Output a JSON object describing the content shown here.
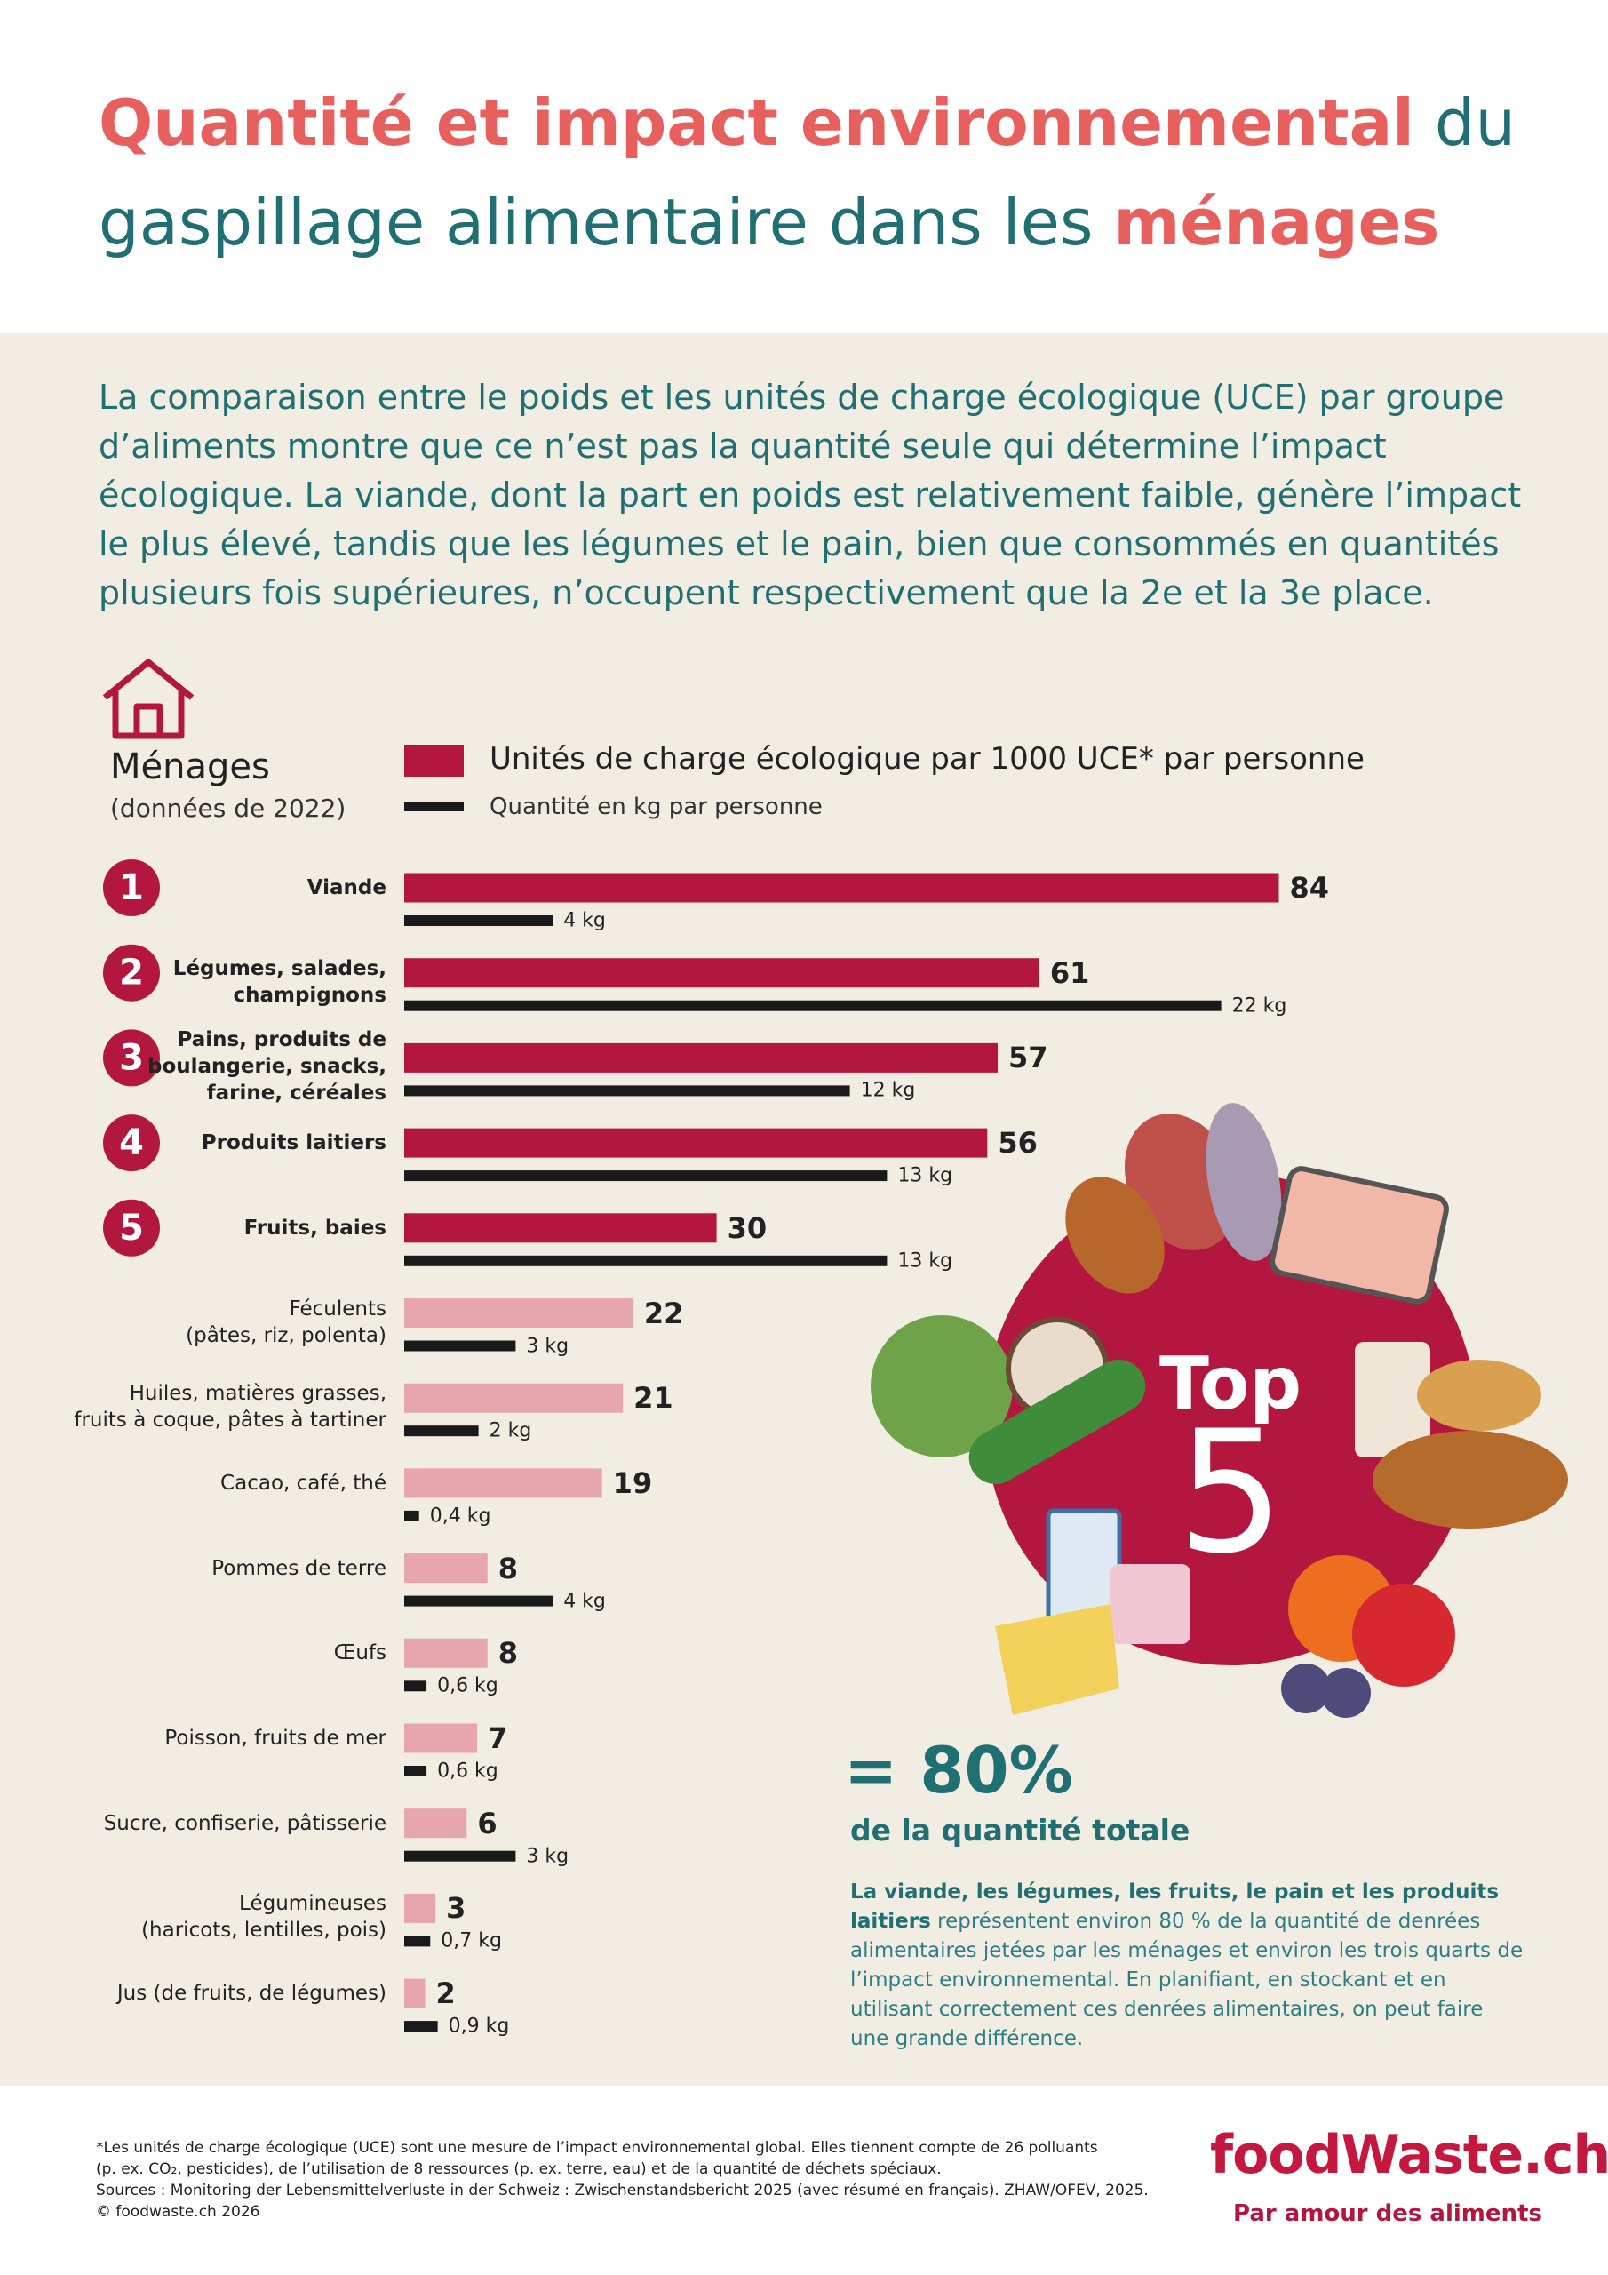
{
  "header": {
    "title_parts": [
      "Quantité et impact environnemental",
      "du",
      "gaspillage alimentaire dans les",
      "ménages"
    ]
  },
  "intro": "La comparaison entre le poids et les unités de charge écologique (UCE) par groupe d’aliments montre que ce n’est pas la quantité seule qui détermine l’impact écologique. La viande, dont la part en poids est relativement faible, génère l’impact le plus élevé, tandis que les légumes et le pain, bien que consommés en quantités plusieurs fois supérieures, n’occupent respectivement que la 2e et la 3e place.",
  "chart_data": {
    "type": "bar",
    "orientation": "horizontal",
    "title": "Ménages",
    "subtitle": "(données de 2022)",
    "categories": [
      "Viande",
      "Légumes, salades,\nchampignons",
      "Pains, produits de\nboulangerie, snacks,\nfarine, céréales",
      "Produits laitiers",
      "Fruits, baies",
      "Féculents\n(pâtes, riz, polenta)",
      "Huiles, matières grasses,\nfruits à coque, pâtes à tartiner",
      "Cacao, café, thé",
      "Pommes de terre",
      "Œufs",
      "Poisson, fruits de mer",
      "Sucre, confiserie, pâtisserie",
      "Légumineuses\n(haricots, lentilles, pois)",
      "Jus (de fruits, de légumes)"
    ],
    "ranks": [
      "1",
      "2",
      "3",
      "4",
      "5"
    ],
    "series": [
      {
        "name": "Unités de charge écologique par 1000 UCE* par personne",
        "color": "#b3173f",
        "colors": [
          "#b3173f",
          "#b3173f",
          "#b3173f",
          "#b3173f",
          "#b3173f",
          "#e6a6ac",
          "#e6a6ac",
          "#e6a6ac",
          "#e6a6ac",
          "#e6a6ac",
          "#e6a6ac",
          "#e6a6ac",
          "#e6a6ac",
          "#e6a6ac"
        ],
        "values": [
          84,
          61,
          57,
          56,
          30,
          22,
          21,
          19,
          8,
          8,
          7,
          6,
          3,
          2
        ]
      },
      {
        "name": "Quantité en kg par personne",
        "color": "#1a1a1a",
        "values": [
          4,
          22,
          12,
          13,
          13,
          3,
          2,
          0.4,
          4,
          0.6,
          0.6,
          3,
          0.7,
          0.9
        ],
        "value_labels": [
          "4 kg",
          "22 kg",
          "12 kg",
          "13 kg",
          "13 kg",
          "3 kg",
          "2 kg",
          "0,4 kg",
          "4 kg",
          "0,6 kg",
          "0,6 kg",
          "3 kg",
          "0,7 kg",
          "0,9 kg"
        ]
      }
    ]
  },
  "badge": {
    "line1": "Top",
    "line2": "5"
  },
  "summary": {
    "headline": "= 80%",
    "subheadline": "de la quantité totale",
    "bold": "La viande, les légumes, les fruits, le pain et les produits laitiers",
    "text": "représentent environ 80 % de la quantité de denrées alimentaires jetées par les ménages et environ les trois quarts de l’impact environnemental. En planifiant, en stockant et en utilisant correctement ces denrées alimentaires, on peut faire une grande différence."
  },
  "footer": {
    "notes": [
      "*Les unités de charge écologique (UCE) sont une mesure de l’impact environnemental global. Elles tiennent compte de 26 polluants",
      "(p. ex. CO₂, pesticides), de l’utilisation de 8 ressources (p. ex. terre, eau) et de la quantité de déchets spéciaux.",
      "Sources : Monitoring der Lebensmittelverluste in der Schweiz : Zwischenstandsbericht 2025 (avec résumé en français). ZHAW/OFEV, 2025.",
      "© foodwaste.ch 2026"
    ],
    "logo": "foodWaste.ch",
    "tagline": "Par amour des aliments"
  }
}
